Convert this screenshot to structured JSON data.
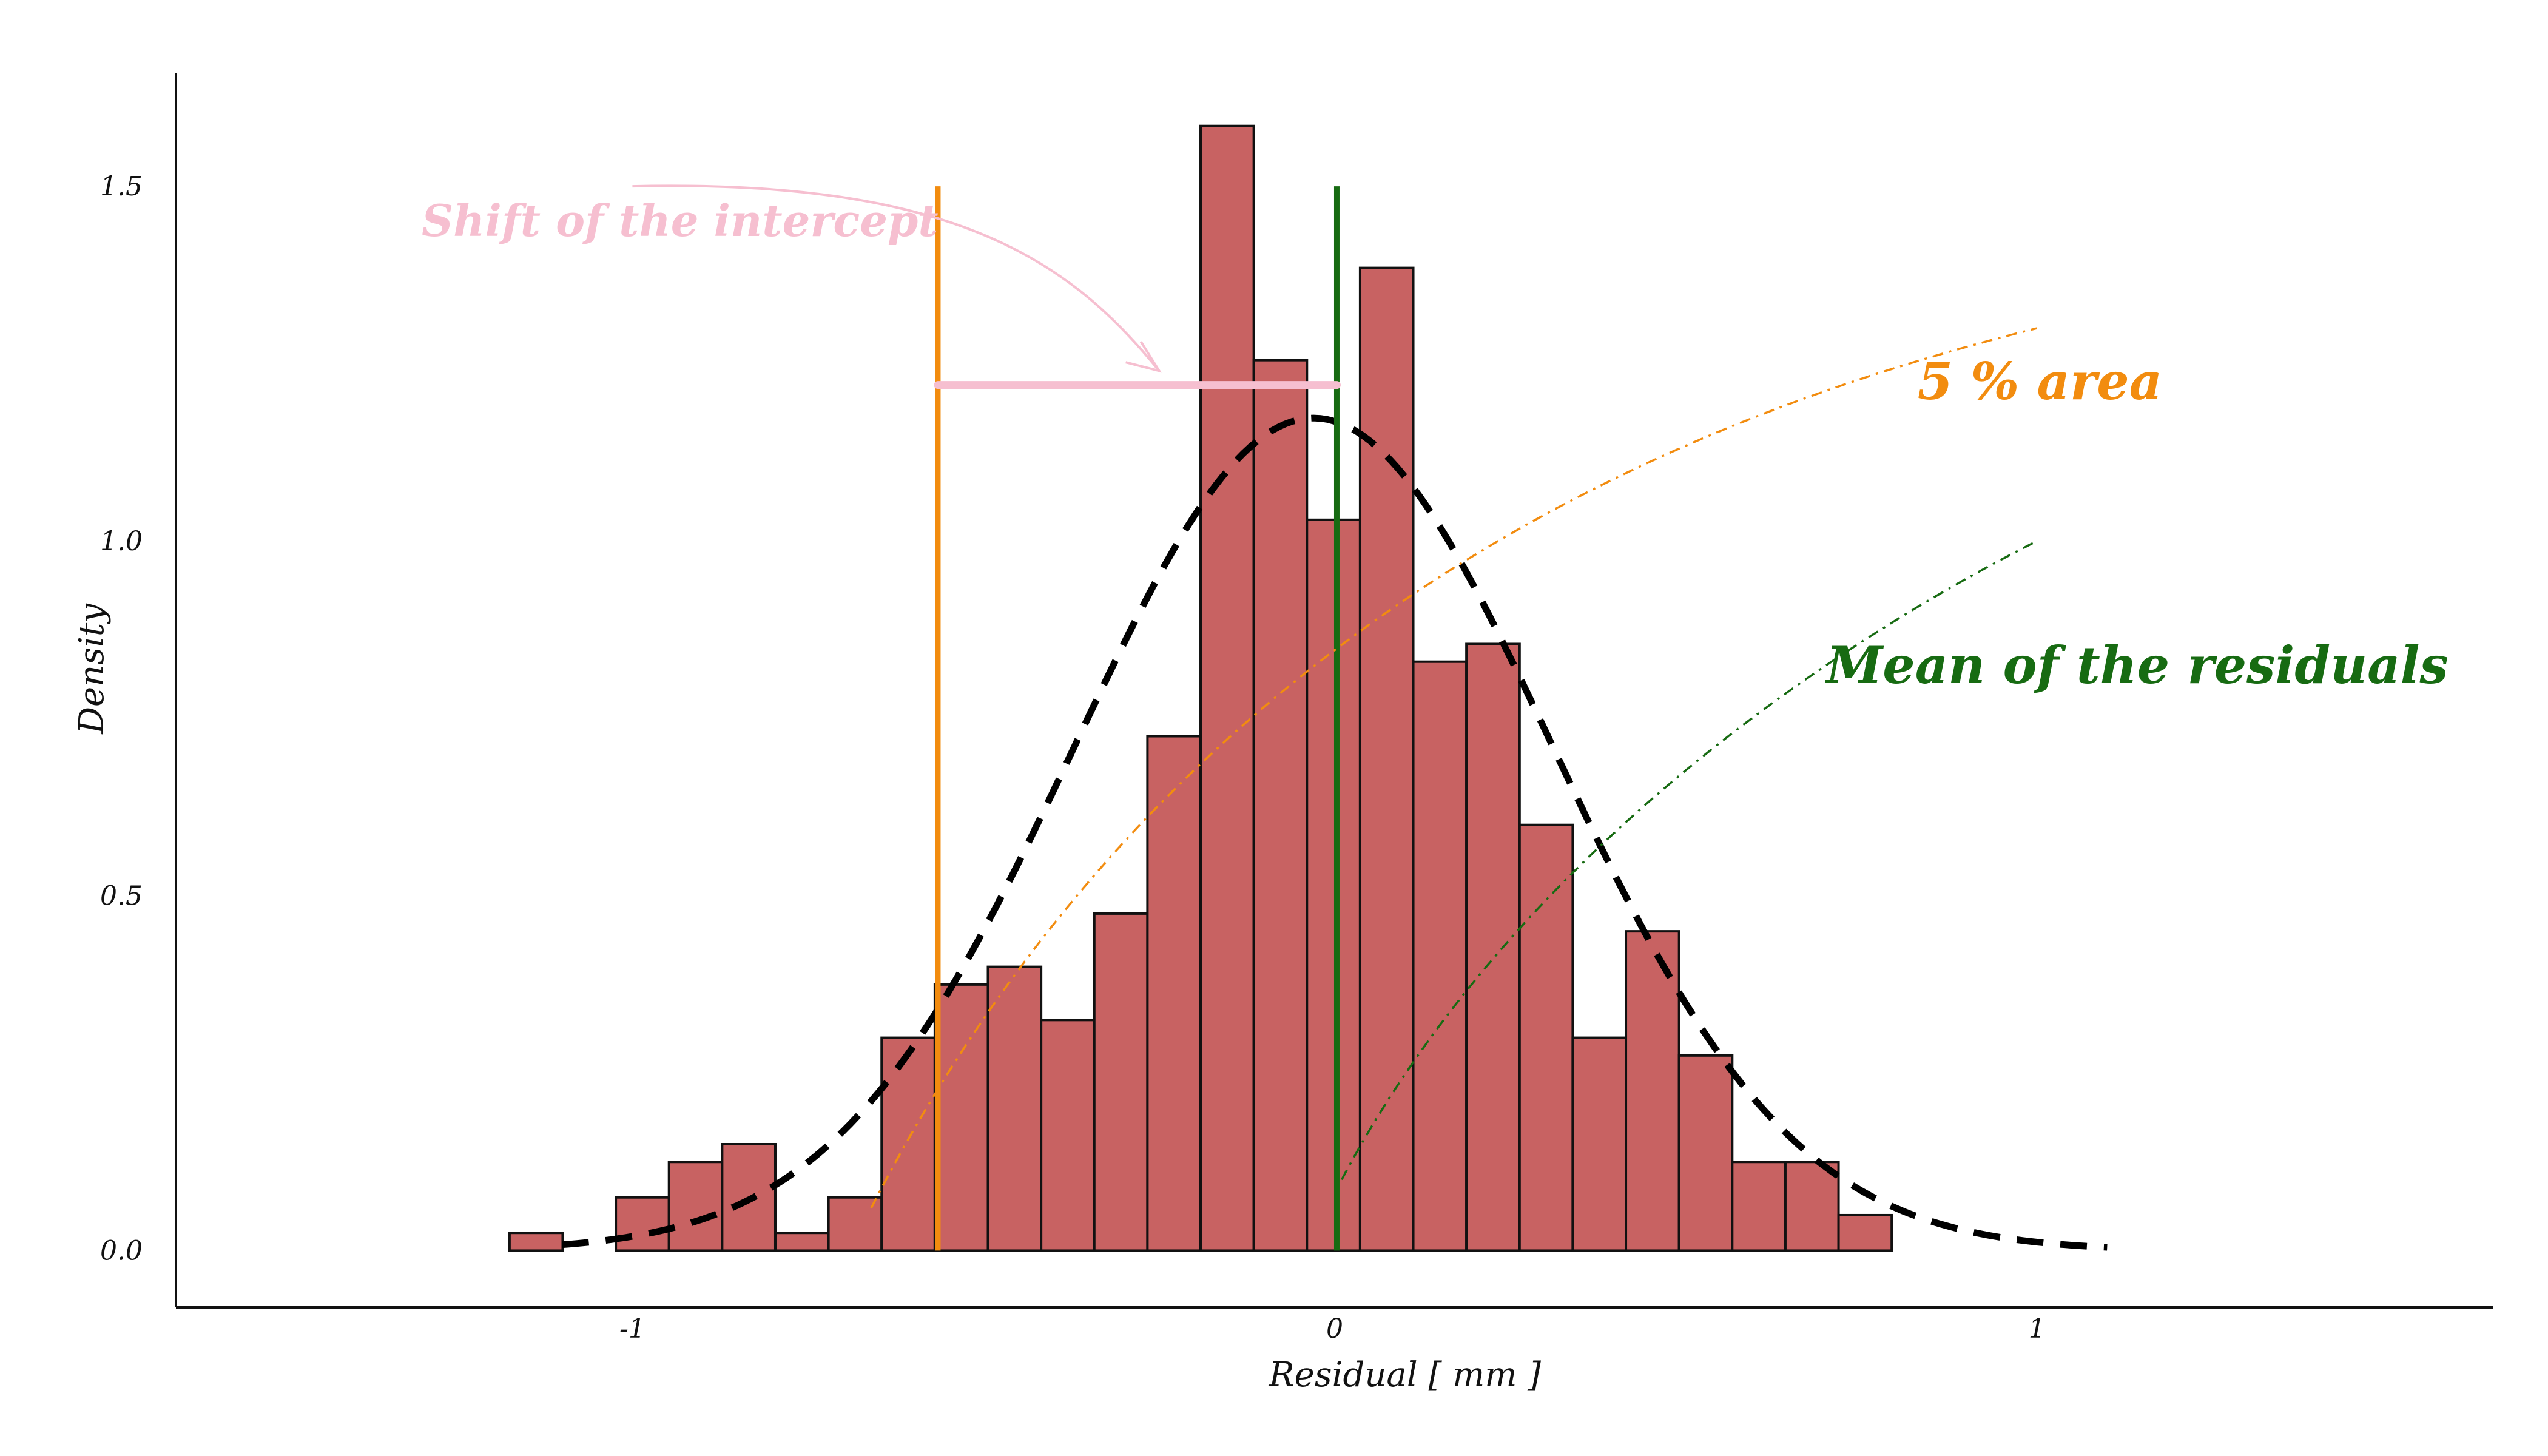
{
  "chart_data": {
    "type": "bar",
    "title": "",
    "xlabel": "Residual [ mm ]",
    "ylabel": "Density",
    "xlim": [
      -1.65,
      1.65
    ],
    "ylim": [
      -0.08,
      1.66
    ],
    "x_ticks": [
      -1,
      0,
      1
    ],
    "x_tick_labels": [
      "-1",
      "0",
      "1"
    ],
    "y_ticks": [
      0.0,
      0.5,
      1.0,
      1.5
    ],
    "y_tick_labels": [
      "0.0",
      "0.5",
      "1.0",
      "1.5"
    ],
    "grid": false,
    "bin_start": -1.175,
    "bin_width": 0.0757,
    "values": [
      0.025,
      0.0,
      0.075,
      0.125,
      0.15,
      0.025,
      0.075,
      0.3,
      0.375,
      0.4,
      0.325,
      0.475,
      0.725,
      1.585,
      1.255,
      1.03,
      1.385,
      0.83,
      0.855,
      0.6,
      0.3,
      0.45,
      0.275,
      0.125,
      0.125,
      0.05
    ],
    "bar_color": "#c86262",
    "bar_edge_color": "#111111",
    "normal_fit": {
      "mean": -0.03,
      "std": 0.34,
      "x_range": [
        -1.1,
        1.1
      ],
      "color": "#000000",
      "style": "dashed"
    },
    "vertical_lines": [
      {
        "x": -0.565,
        "y_top": 1.5,
        "color": "#f28c0f",
        "meaning": "5 % area"
      },
      {
        "x": 0.003,
        "y_top": 1.5,
        "color": "#176b12",
        "meaning": "Mean of the residuals"
      }
    ],
    "annotations": [
      {
        "text": "Shift of the intercept",
        "color": "#f6bfd0",
        "x": -1.3,
        "y": 1.43
      },
      {
        "text": "5 % area",
        "color": "#f28c0f",
        "x": 0.83,
        "y": 1.2
      },
      {
        "text": "Mean of the residuals",
        "color": "#176b12",
        "x": 0.7,
        "y": 0.8
      }
    ]
  }
}
